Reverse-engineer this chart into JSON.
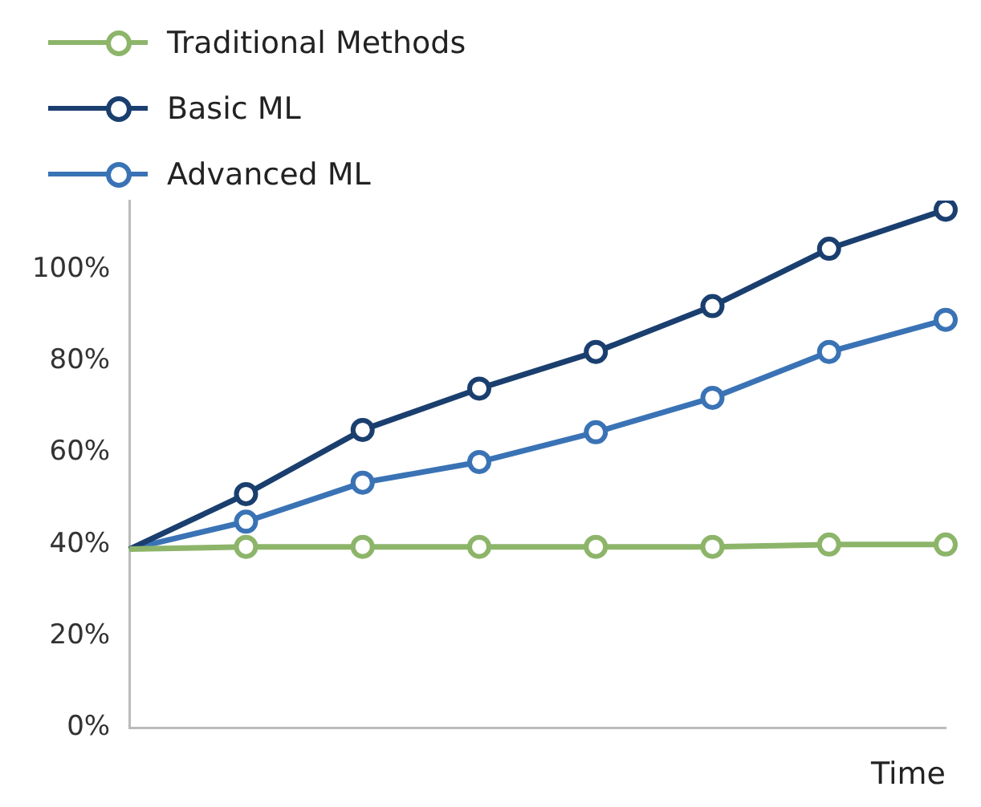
{
  "chart_data": {
    "type": "line",
    "xlabel": "Time",
    "categories": [
      null,
      null,
      null,
      null,
      null,
      null,
      null,
      null
    ],
    "series": [
      {
        "name": "Traditional Methods",
        "color": "#8db56a",
        "values": [
          39,
          39.5,
          39.5,
          39.5,
          39.5,
          39.5,
          40,
          40
        ]
      },
      {
        "name": "Basic ML",
        "color": "#1a3f6f",
        "values": [
          39,
          51,
          65,
          74,
          82,
          92,
          104.5,
          113
        ]
      },
      {
        "name": "Advanced ML",
        "color": "#3a73b5",
        "values": [
          39,
          45,
          53.5,
          58,
          64.5,
          72,
          82,
          89
        ]
      }
    ],
    "ylim": [
      0,
      115
    ],
    "yticks": [
      {
        "value": 0,
        "label": "0%"
      },
      {
        "value": 20,
        "label": "20%"
      },
      {
        "value": 40,
        "label": "40%"
      },
      {
        "value": 60,
        "label": "60%"
      },
      {
        "value": 80,
        "label": "80%"
      },
      {
        "value": 100,
        "label": "100%"
      }
    ],
    "grid": false,
    "legend": "top left",
    "marker": "circle",
    "line_style": "solid"
  }
}
